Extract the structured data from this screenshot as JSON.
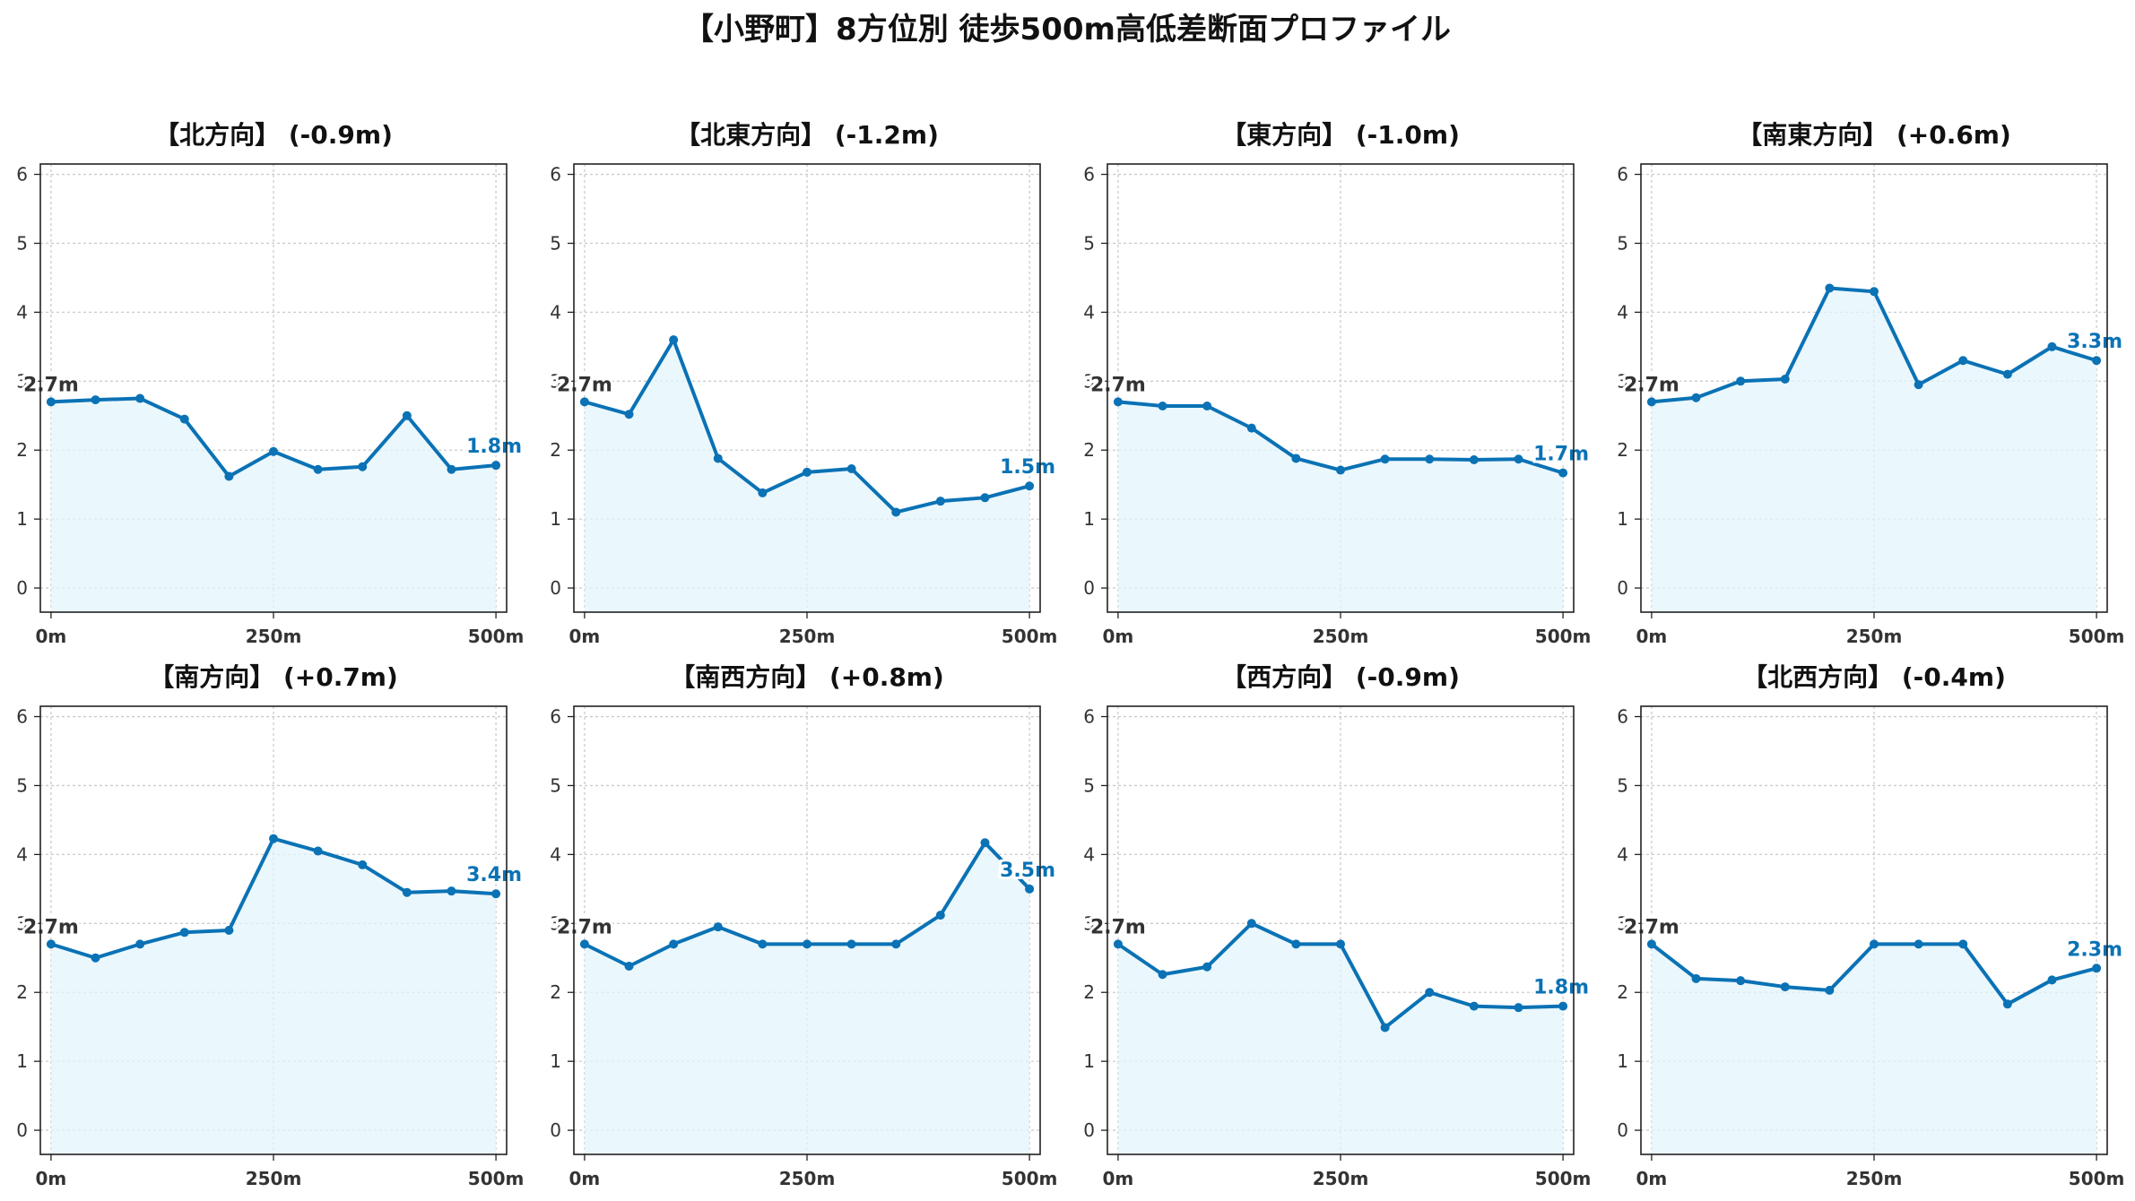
{
  "figure": {
    "title": "【小野町】8方位別 徒歩500m高低差断面プロファイル"
  },
  "colors": {
    "line": "#0a72b5",
    "fill": "#e3f4fb",
    "grid": "#cccccc",
    "start_label": "#333333",
    "end_label": "#0a72b5"
  },
  "chart_data": [
    {
      "type": "area",
      "title": "【北方向】 (-0.9m)",
      "x": [
        0,
        50,
        100,
        150,
        200,
        250,
        300,
        350,
        400,
        450,
        500
      ],
      "values": [
        2.7,
        2.73,
        2.75,
        2.45,
        1.62,
        1.98,
        1.72,
        1.76,
        2.5,
        1.72,
        1.78
      ],
      "start_label": "2.7m",
      "end_label": "1.8m",
      "ylim": [
        -0.35,
        6.15
      ],
      "xlim": [
        -12,
        512
      ],
      "yticks": [
        "0",
        "1",
        "2",
        "3",
        "4",
        "5",
        "6"
      ],
      "xticks": [
        "0m",
        "250m",
        "500m"
      ],
      "grid": true
    },
    {
      "type": "area",
      "title": "【北東方向】 (-1.2m)",
      "x": [
        0,
        50,
        100,
        150,
        200,
        250,
        300,
        350,
        400,
        450,
        500
      ],
      "values": [
        2.7,
        2.52,
        3.6,
        1.88,
        1.38,
        1.68,
        1.73,
        1.1,
        1.26,
        1.31,
        1.48
      ],
      "start_label": "2.7m",
      "end_label": "1.5m",
      "ylim": [
        -0.35,
        6.15
      ],
      "xlim": [
        -12,
        512
      ],
      "yticks": [
        "0",
        "1",
        "2",
        "3",
        "4",
        "5",
        "6"
      ],
      "xticks": [
        "0m",
        "250m",
        "500m"
      ],
      "grid": true
    },
    {
      "type": "area",
      "title": "【東方向】 (-1.0m)",
      "x": [
        0,
        50,
        100,
        150,
        200,
        250,
        300,
        350,
        400,
        450,
        500
      ],
      "values": [
        2.7,
        2.64,
        2.64,
        2.32,
        1.88,
        1.71,
        1.87,
        1.87,
        1.86,
        1.87,
        1.67
      ],
      "start_label": "2.7m",
      "end_label": "1.7m",
      "ylim": [
        -0.35,
        6.15
      ],
      "xlim": [
        -12,
        512
      ],
      "yticks": [
        "0",
        "1",
        "2",
        "3",
        "4",
        "5",
        "6"
      ],
      "xticks": [
        "0m",
        "250m",
        "500m"
      ],
      "grid": true
    },
    {
      "type": "area",
      "title": "【南東方向】 (+0.6m)",
      "x": [
        0,
        50,
        100,
        150,
        200,
        250,
        300,
        350,
        400,
        450,
        500
      ],
      "values": [
        2.7,
        2.76,
        3.0,
        3.03,
        4.35,
        4.3,
        2.95,
        3.3,
        3.1,
        3.5,
        3.3
      ],
      "start_label": "2.7m",
      "end_label": "3.3m",
      "ylim": [
        -0.35,
        6.15
      ],
      "xlim": [
        -12,
        512
      ],
      "yticks": [
        "0",
        "1",
        "2",
        "3",
        "4",
        "5",
        "6"
      ],
      "xticks": [
        "0m",
        "250m",
        "500m"
      ],
      "grid": true
    },
    {
      "type": "area",
      "title": "【南方向】 (+0.7m)",
      "x": [
        0,
        50,
        100,
        150,
        200,
        250,
        300,
        350,
        400,
        450,
        500
      ],
      "values": [
        2.7,
        2.5,
        2.7,
        2.87,
        2.9,
        4.23,
        4.05,
        3.85,
        3.45,
        3.47,
        3.43
      ],
      "start_label": "2.7m",
      "end_label": "3.4m",
      "ylim": [
        -0.35,
        6.15
      ],
      "xlim": [
        -12,
        512
      ],
      "yticks": [
        "0",
        "1",
        "2",
        "3",
        "4",
        "5",
        "6"
      ],
      "xticks": [
        "0m",
        "250m",
        "500m"
      ],
      "grid": true
    },
    {
      "type": "area",
      "title": "【南西方向】 (+0.8m)",
      "x": [
        0,
        50,
        100,
        150,
        200,
        250,
        300,
        350,
        400,
        450,
        500
      ],
      "values": [
        2.7,
        2.38,
        2.7,
        2.95,
        2.7,
        2.7,
        2.7,
        2.7,
        3.12,
        4.17,
        3.5
      ],
      "start_label": "2.7m",
      "end_label": "3.5m",
      "ylim": [
        -0.35,
        6.15
      ],
      "xlim": [
        -12,
        512
      ],
      "yticks": [
        "0",
        "1",
        "2",
        "3",
        "4",
        "5",
        "6"
      ],
      "xticks": [
        "0m",
        "250m",
        "500m"
      ],
      "grid": true
    },
    {
      "type": "area",
      "title": "【西方向】 (-0.9m)",
      "x": [
        0,
        50,
        100,
        150,
        200,
        250,
        300,
        350,
        400,
        450,
        500
      ],
      "values": [
        2.7,
        2.26,
        2.37,
        3.0,
        2.7,
        2.7,
        1.49,
        2.0,
        1.8,
        1.78,
        1.8
      ],
      "start_label": "2.7m",
      "end_label": "1.8m",
      "ylim": [
        -0.35,
        6.15
      ],
      "xlim": [
        -12,
        512
      ],
      "yticks": [
        "0",
        "1",
        "2",
        "3",
        "4",
        "5",
        "6"
      ],
      "xticks": [
        "0m",
        "250m",
        "500m"
      ],
      "grid": true
    },
    {
      "type": "area",
      "title": "【北西方向】 (-0.4m)",
      "x": [
        0,
        50,
        100,
        150,
        200,
        250,
        300,
        350,
        400,
        450,
        500
      ],
      "values": [
        2.7,
        2.2,
        2.17,
        2.08,
        2.03,
        2.7,
        2.7,
        2.7,
        1.83,
        2.18,
        2.35
      ],
      "start_label": "2.7m",
      "end_label": "2.3m",
      "ylim": [
        -0.35,
        6.15
      ],
      "xlim": [
        -12,
        512
      ],
      "yticks": [
        "0",
        "1",
        "2",
        "3",
        "4",
        "5",
        "6"
      ],
      "xticks": [
        "0m",
        "250m",
        "500m"
      ],
      "grid": true
    }
  ]
}
